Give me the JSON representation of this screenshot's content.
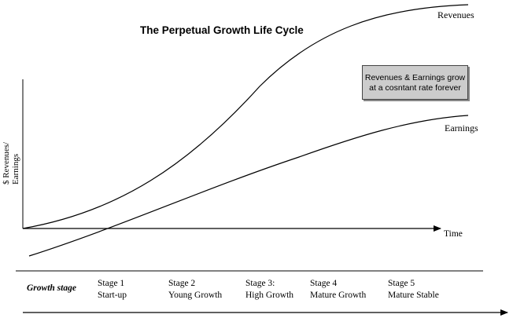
{
  "title": "The Perpetual Growth Life Cycle",
  "y_axis_label": [
    "$ Revenues/",
    "Earnings"
  ],
  "x_axis_label": "Time",
  "curves": {
    "revenues": "Revenues",
    "earnings": "Earnings"
  },
  "note": [
    "Revenues & Earnings grow",
    "at a cosntant rate forever"
  ],
  "growth_stage_label": "Growth stage",
  "stages": [
    {
      "line1": "Stage 1",
      "line2": "Start-up"
    },
    {
      "line1": "Stage 2",
      "line2": "Young Growth"
    },
    {
      "line1": "Stage 3:",
      "line2": "High Growth"
    },
    {
      "line1": "Stage 4",
      "line2": "Mature Growth"
    },
    {
      "line1": "Stage 5",
      "line2": "Mature Stable"
    }
  ],
  "colors": {
    "line": "#000000",
    "note_fill": "#cccccc"
  }
}
